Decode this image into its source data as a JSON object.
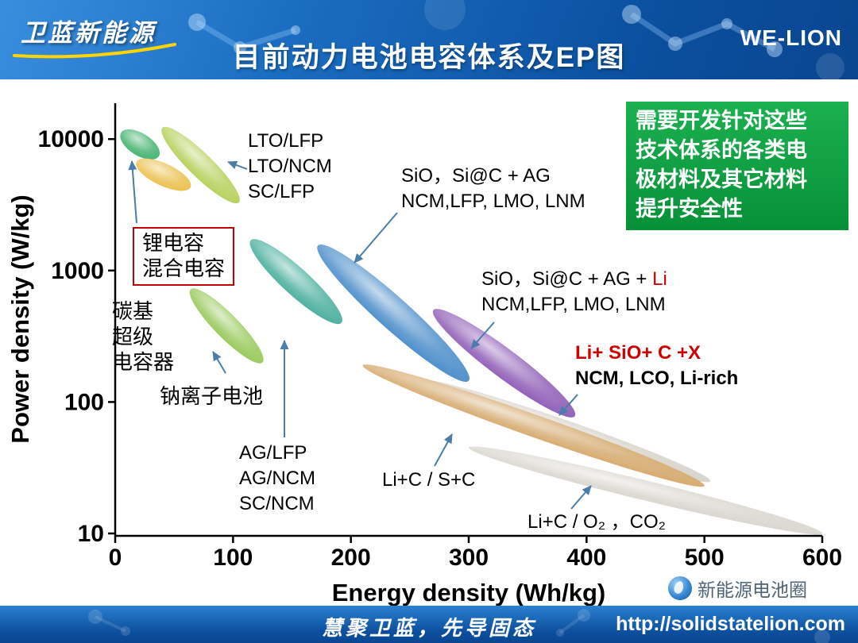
{
  "header": {
    "logo_text": "卫蓝新能源",
    "title": "目前动力电池电容体系及EP图",
    "brand": "WE-LION"
  },
  "annotation_box": {
    "bg_color": "#0ea344",
    "lines": [
      "需要开发针对这些",
      "技术体系的各类电",
      "极材料及其它材料",
      "提升安全性"
    ]
  },
  "footer": {
    "slogan": "慧聚卫蓝，先导固态",
    "url": "http://solidstatelion.com",
    "watermark_text": "新能源电池圈"
  },
  "chart_data": {
    "type": "scatter",
    "title": "目前动力电池电容体系及EP图",
    "xlabel": "Energy density (Wh/kg)",
    "ylabel": "Power density (W/kg)",
    "x_scale": "linear",
    "y_scale": "log",
    "xlim": [
      0,
      600
    ],
    "ylim": [
      10,
      10000
    ],
    "x_ticks": [
      0,
      100,
      200,
      300,
      400,
      500,
      600
    ],
    "y_ticks": [
      10,
      100,
      1000,
      10000
    ],
    "grid": false,
    "legend": "none",
    "series": [
      {
        "id": "sio-ag",
        "label": "SiO，Si@C + AG / NCM,LFP, LMO, LNM",
        "color": "#2a78c0",
        "e_range": [
          172,
          300
        ],
        "p_range": [
          145,
          1550
        ],
        "width": 40
      },
      {
        "id": "sio-ag-li",
        "label": "SiO，Si@C + AG + Li / NCM,LFP, LMO, LNM",
        "color": "#7b3fa9",
        "e_range": [
          270,
          390
        ],
        "p_range": [
          78,
          500
        ],
        "width": 36
      },
      {
        "id": "li-c-s",
        "label": "Li+C / S+C",
        "color": "#cfcabf",
        "e_range": [
          260,
          505
        ],
        "p_range": [
          25,
          145
        ],
        "width": 26
      },
      {
        "id": "li-c-o2",
        "label": "Li+C / O₂，CO₂",
        "color": "#d3cfc6",
        "e_range": [
          300,
          600
        ],
        "p_range": [
          10,
          45
        ],
        "width": 25
      },
      {
        "id": "li-sio-cx",
        "label": "Li+ SiO+ C +X / NCM, LCO, Li-rich",
        "color": "#cf9a52",
        "e_range": [
          210,
          500
        ],
        "p_range": [
          23,
          190
        ],
        "width": 28
      },
      {
        "id": "carbon-supercap",
        "label": "碳基超级电容器",
        "color": "#21a455",
        "e_range": [
          5,
          37
        ],
        "p_range": [
          7400,
          11200
        ],
        "width": 28
      },
      {
        "id": "li-capacitor",
        "label": "锂电容 / 混合电容",
        "color": "#e6b42e",
        "e_range": [
          18,
          64
        ],
        "p_range": [
          4300,
          6700
        ],
        "width": 28
      },
      {
        "id": "lto",
        "label": "LTO/LFP, LTO/NCM, SC/LFP",
        "color": "#a8c83e",
        "e_range": [
          40,
          105
        ],
        "p_range": [
          3300,
          12200
        ],
        "width": 30
      },
      {
        "id": "sodium",
        "label": "钠离子电池",
        "color": "#86c03c",
        "e_range": [
          64,
          125
        ],
        "p_range": [
          200,
          720
        ],
        "width": 30
      },
      {
        "id": "ag",
        "label": "AG/LFP, AG/NCM, SC/NCM",
        "color": "#2aa18c",
        "e_range": [
          115,
          192
        ],
        "p_range": [
          400,
          1700
        ],
        "width": 34
      }
    ]
  },
  "chart_labels": {
    "lto": {
      "lines": [
        "LTO/LFP",
        "LTO/NCM",
        "SC/LFP"
      ]
    },
    "sio_ag": {
      "lines": [
        "SiO，Si@C + AG",
        "NCM,LFP, LMO, LNM"
      ]
    },
    "li_cap_box": {
      "lines": [
        "锂电容",
        "混合电容"
      ]
    },
    "carbon": {
      "lines": [
        "碳基",
        "超级",
        "电容器"
      ]
    },
    "sodium": {
      "text": "钠离子电池"
    },
    "sio_ag_li": {
      "line1_black": "SiO，Si@C + AG + ",
      "line1_red": "Li",
      "line2": "NCM,LFP, LMO, LNM"
    },
    "li_sio_cx": {
      "line1": "Li+ SiO+ C +X",
      "line2": "NCM, LCO, Li-rich",
      "line1_color": "#cf0000"
    },
    "ag_lfp": {
      "lines": [
        "AG/LFP",
        "AG/NCM",
        "SC/NCM"
      ]
    },
    "li_c_s": {
      "text": "Li+C / S+C"
    },
    "li_c_o2": {
      "text": "Li+C / O₂ ，CO₂"
    }
  }
}
